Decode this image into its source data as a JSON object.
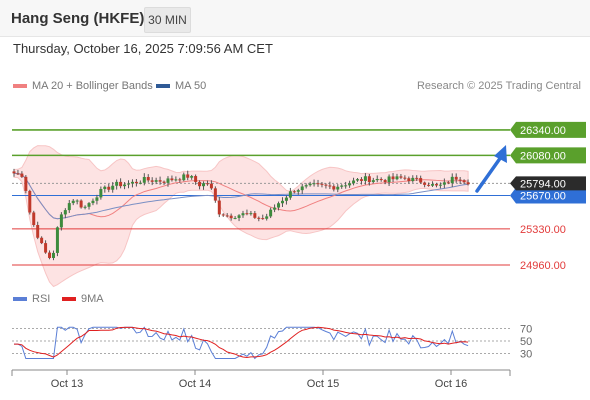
{
  "header": {
    "title": "Hang Seng (HKFE)",
    "timeframe": "30 MIN"
  },
  "datetime": "Thursday, October 16, 2025 7:09:56 AM CET",
  "legend": {
    "ma20": {
      "label": "MA 20 + Bollinger Bands",
      "color": "#f08080"
    },
    "ma50": {
      "label": "MA 50",
      "color": "#2f5a96"
    }
  },
  "research": "Research © 2025 Trading Central",
  "rsi_legend": {
    "rsi": {
      "label": "RSI",
      "color": "#5b7fd6"
    },
    "ma9": {
      "label": "9MA",
      "color": "#e02020"
    }
  },
  "chart_data": {
    "type": "candlestick",
    "x_ticks": [
      "Oct 13",
      "Oct 14",
      "Oct 15",
      "Oct 16"
    ],
    "current_price": "25794.00",
    "levels": [
      {
        "value": 26340,
        "label": "26340.00",
        "type": "resistance",
        "color": "#5aa02c"
      },
      {
        "value": 26080,
        "label": "26080.00",
        "type": "resistance",
        "color": "#5aa02c"
      },
      {
        "value": 25670,
        "label": "25670.00",
        "type": "pivot",
        "color": "#2f6fd6"
      },
      {
        "value": 25330,
        "label": "25330.00",
        "type": "support",
        "color": "#e23b3b"
      },
      {
        "value": 24960,
        "label": "24960.00",
        "type": "support",
        "color": "#e23b3b"
      }
    ],
    "price_range": [
      24930,
      26390
    ],
    "rsi_axis": [
      70,
      50,
      30
    ],
    "rsi_range": [
      10,
      90
    ]
  }
}
